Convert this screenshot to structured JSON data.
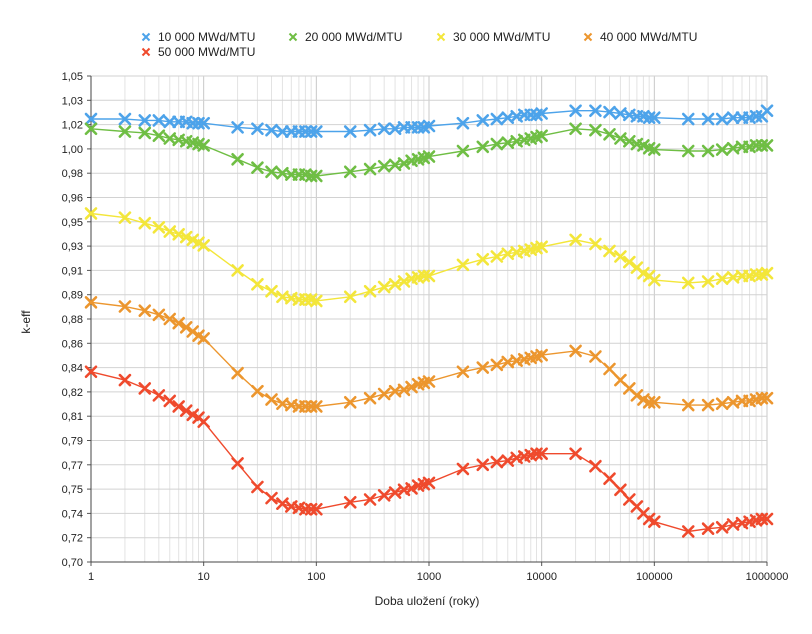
{
  "chart_data": {
    "type": "line",
    "xscale": "log",
    "xlabel": "Doba uložení (roky)",
    "ylabel": "k-eff",
    "xlim": [
      1,
      1000000
    ],
    "ylim": [
      0.7,
      1.05
    ],
    "grid": true,
    "legend_position": "top",
    "y_tick_labels": [
      "0,70",
      "0,72",
      "0,74",
      "0,75",
      "0,77",
      "0,79",
      "0,81",
      "0,82",
      "0,84",
      "0,86",
      "0,88",
      "0,89",
      "0,91",
      "0,93",
      "0,95",
      "0,96",
      "0,98",
      "1,00",
      "1,02",
      "1,03",
      "1,05"
    ],
    "x_tick_labels": [
      "1",
      "10",
      "100",
      "1000",
      "10000",
      "100000",
      "1000000"
    ],
    "x": [
      1,
      2,
      3,
      4,
      5,
      6,
      7,
      8,
      9,
      10,
      20,
      30,
      40,
      50,
      60,
      70,
      80,
      90,
      100,
      200,
      300,
      400,
      500,
      600,
      700,
      800,
      900,
      1000,
      2000,
      3000,
      4000,
      5000,
      6000,
      7000,
      8000,
      9000,
      10000,
      20000,
      30000,
      40000,
      50000,
      60000,
      70000,
      80000,
      90000,
      100000,
      200000,
      300000,
      400000,
      500000,
      600000,
      700000,
      800000,
      900000,
      1000000
    ],
    "series": [
      {
        "name": "10 000 MWd/MTU",
        "color": "#4da3ea",
        "values": [
          1.019,
          1.019,
          1.018,
          1.018,
          1.017,
          1.017,
          1.017,
          1.016,
          1.016,
          1.016,
          1.013,
          1.012,
          1.011,
          1.01,
          1.01,
          1.01,
          1.01,
          1.01,
          1.01,
          1.01,
          1.011,
          1.012,
          1.012,
          1.013,
          1.013,
          1.013,
          1.013,
          1.014,
          1.016,
          1.018,
          1.019,
          1.02,
          1.021,
          1.022,
          1.022,
          1.022,
          1.023,
          1.025,
          1.025,
          1.024,
          1.023,
          1.022,
          1.021,
          1.021,
          1.02,
          1.02,
          1.019,
          1.019,
          1.019,
          1.02,
          1.02,
          1.02,
          1.021,
          1.021,
          1.025
        ]
      },
      {
        "name": "20 000 MWd/MTU",
        "color": "#6fbe44",
        "values": [
          1.012,
          1.01,
          1.009,
          1.007,
          1.005,
          1.004,
          1.003,
          1.002,
          1.001,
          1.0,
          0.99,
          0.984,
          0.981,
          0.98,
          0.979,
          0.979,
          0.979,
          0.978,
          0.978,
          0.981,
          0.983,
          0.985,
          0.986,
          0.987,
          0.989,
          0.99,
          0.991,
          0.992,
          0.996,
          0.999,
          1.001,
          1.002,
          1.003,
          1.004,
          1.005,
          1.006,
          1.007,
          1.012,
          1.011,
          1.008,
          1.005,
          1.003,
          1.001,
          1.0,
          0.998,
          0.997,
          0.996,
          0.996,
          0.997,
          0.998,
          0.999,
          0.999,
          1.0,
          1.0,
          1.0
        ]
      },
      {
        "name": "30 000 MWd/MTU",
        "color": "#f3e63a",
        "values": [
          0.951,
          0.948,
          0.944,
          0.941,
          0.938,
          0.936,
          0.934,
          0.932,
          0.93,
          0.928,
          0.91,
          0.9,
          0.895,
          0.891,
          0.89,
          0.889,
          0.889,
          0.889,
          0.888,
          0.891,
          0.895,
          0.898,
          0.9,
          0.902,
          0.904,
          0.905,
          0.906,
          0.906,
          0.914,
          0.918,
          0.92,
          0.922,
          0.923,
          0.924,
          0.925,
          0.926,
          0.927,
          0.932,
          0.929,
          0.924,
          0.92,
          0.916,
          0.912,
          0.908,
          0.906,
          0.903,
          0.901,
          0.902,
          0.904,
          0.905,
          0.906,
          0.906,
          0.907,
          0.907,
          0.908
        ]
      },
      {
        "name": "40 000 MWd/MTU",
        "color": "#ec962e",
        "values": [
          0.887,
          0.884,
          0.881,
          0.878,
          0.875,
          0.872,
          0.869,
          0.866,
          0.863,
          0.861,
          0.836,
          0.823,
          0.817,
          0.814,
          0.813,
          0.812,
          0.812,
          0.812,
          0.812,
          0.815,
          0.818,
          0.821,
          0.823,
          0.824,
          0.826,
          0.828,
          0.829,
          0.83,
          0.837,
          0.84,
          0.842,
          0.844,
          0.845,
          0.846,
          0.847,
          0.848,
          0.849,
          0.852,
          0.848,
          0.839,
          0.831,
          0.825,
          0.82,
          0.817,
          0.815,
          0.815,
          0.813,
          0.813,
          0.814,
          0.815,
          0.816,
          0.816,
          0.817,
          0.818,
          0.818
        ]
      },
      {
        "name": "50 000 MWd/MTU",
        "color": "#ef4a2d",
        "values": [
          0.837,
          0.831,
          0.825,
          0.82,
          0.816,
          0.812,
          0.809,
          0.806,
          0.804,
          0.801,
          0.771,
          0.754,
          0.746,
          0.742,
          0.74,
          0.739,
          0.738,
          0.738,
          0.738,
          0.743,
          0.745,
          0.748,
          0.75,
          0.752,
          0.753,
          0.755,
          0.756,
          0.757,
          0.767,
          0.77,
          0.772,
          0.773,
          0.775,
          0.776,
          0.777,
          0.778,
          0.778,
          0.778,
          0.769,
          0.76,
          0.752,
          0.745,
          0.74,
          0.735,
          0.731,
          0.729,
          0.722,
          0.724,
          0.725,
          0.727,
          0.728,
          0.729,
          0.73,
          0.731,
          0.731
        ]
      }
    ]
  }
}
